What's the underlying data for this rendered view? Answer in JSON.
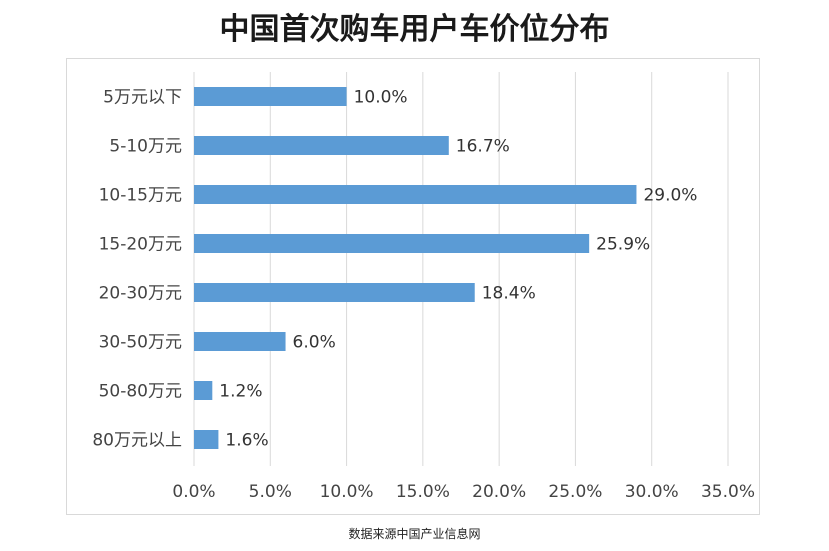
{
  "title": "中国首次购车用户车价位分布",
  "source": "数据来源中国产业信息网",
  "colors": {
    "bar": "#5b9bd5",
    "grid": "#d9d9d9"
  },
  "chart_data": {
    "type": "bar",
    "orientation": "horizontal",
    "title": "中国首次购车用户车价位分布",
    "categories": [
      "5万元以下",
      "5-10万元",
      "10-15万元",
      "15-20万元",
      "20-30万元",
      "30-50万元",
      "50-80万元",
      "80万元以上"
    ],
    "values": [
      10.0,
      16.7,
      29.0,
      25.9,
      18.4,
      6.0,
      1.2,
      1.6
    ],
    "value_labels": [
      "10.0%",
      "16.7%",
      "29.0%",
      "25.9%",
      "18.4%",
      "6.0%",
      "1.2%",
      "1.6%"
    ],
    "xticks": [
      "0.0%",
      "5.0%",
      "10.0%",
      "15.0%",
      "20.0%",
      "25.0%",
      "30.0%",
      "35.0%"
    ],
    "xlim": [
      0,
      35
    ],
    "xlabel": "",
    "ylabel": "",
    "grid": true,
    "legend": "none"
  }
}
